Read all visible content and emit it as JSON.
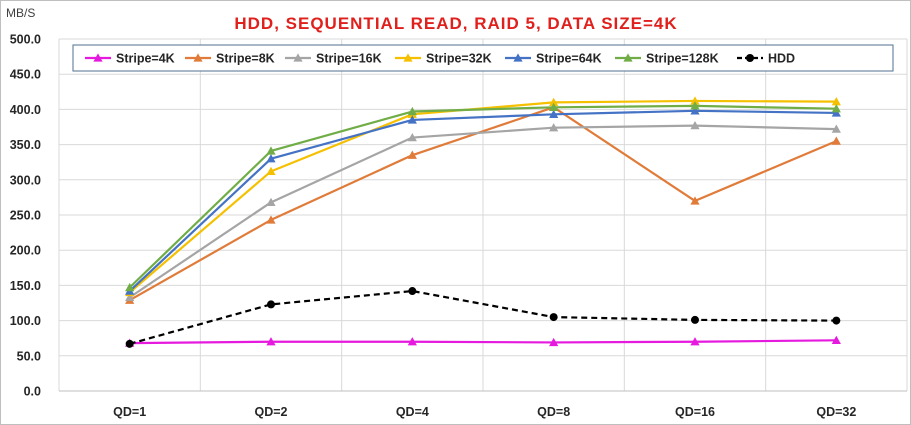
{
  "chart_data": {
    "type": "line",
    "title": "HDD, SEQUENTIAL READ, RAID 5, DATA SIZE=4K",
    "title_color": "#e0201c",
    "ylabel": "MB/S",
    "xlabel": "",
    "ylim": [
      0,
      500
    ],
    "y_ticks": [
      "0.0",
      "50.0",
      "100.0",
      "150.0",
      "200.0",
      "250.0",
      "300.0",
      "350.0",
      "400.0",
      "450.0",
      "500.0"
    ],
    "categories": [
      "QD=1",
      "QD=2",
      "QD=4",
      "QD=8",
      "QD=16",
      "QD=32"
    ],
    "grid": true,
    "legend_position": "top",
    "series": [
      {
        "name": "Stripe=4K",
        "color": "#e61adf",
        "marker": "triangle",
        "dashed": false,
        "values": [
          68,
          70,
          70,
          69,
          70,
          72
        ]
      },
      {
        "name": "Stripe=8K",
        "color": "#e07b39",
        "marker": "triangle",
        "dashed": false,
        "values": [
          129,
          243,
          335,
          403,
          270,
          355
        ]
      },
      {
        "name": "Stripe=16K",
        "color": "#a5a5a5",
        "marker": "triangle",
        "dashed": false,
        "values": [
          133,
          268,
          360,
          374,
          377,
          372
        ]
      },
      {
        "name": "Stripe=32K",
        "color": "#f5c000",
        "marker": "triangle",
        "dashed": false,
        "values": [
          140,
          312,
          393,
          410,
          412,
          411
        ]
      },
      {
        "name": "Stripe=64K",
        "color": "#4472c4",
        "marker": "triangle",
        "dashed": false,
        "values": [
          142,
          330,
          385,
          393,
          398,
          395
        ]
      },
      {
        "name": "Stripe=128K",
        "color": "#70ad47",
        "marker": "triangle",
        "dashed": false,
        "values": [
          147,
          341,
          397,
          403,
          405,
          401
        ]
      },
      {
        "name": "HDD",
        "color": "#000000",
        "marker": "circle",
        "dashed": true,
        "values": [
          67,
          123,
          142,
          105,
          101,
          100
        ]
      }
    ]
  }
}
